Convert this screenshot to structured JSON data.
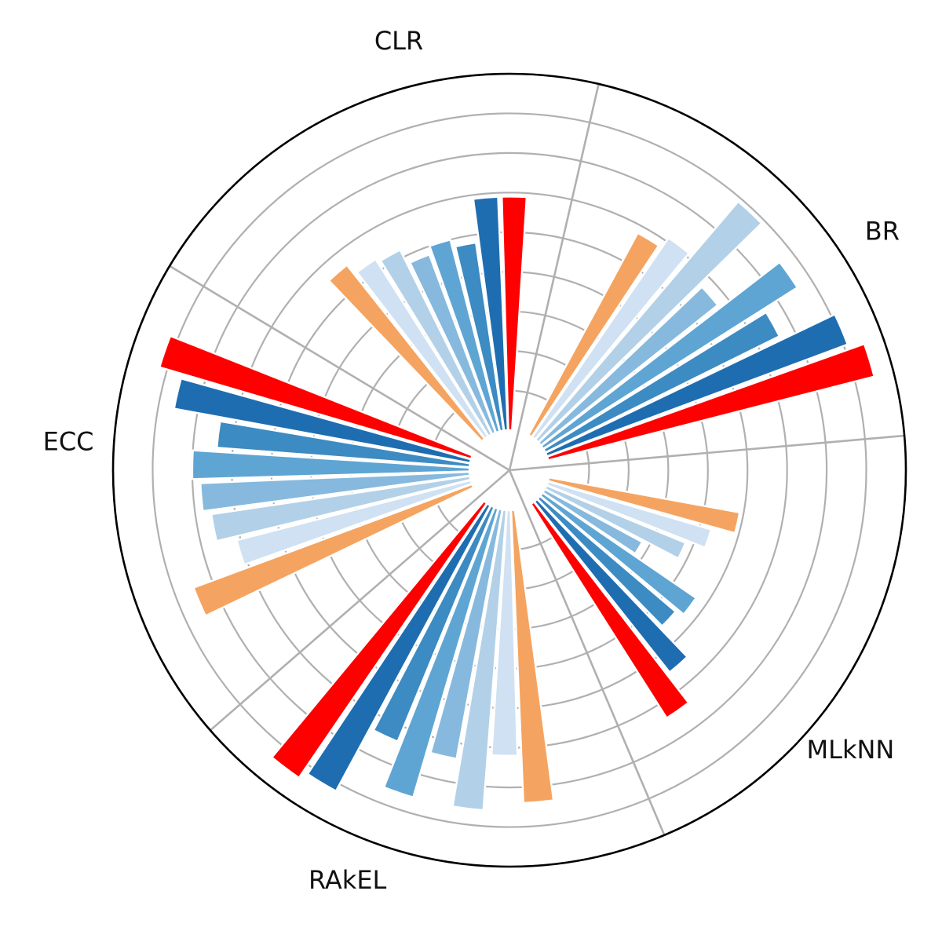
{
  "chart_data": {
    "type": "bar",
    "projection": "polar",
    "title": "",
    "grid": true,
    "r_range": [
      0,
      9
    ],
    "r_ticks": [
      1,
      2,
      3,
      4,
      5,
      6,
      7,
      8,
      9
    ],
    "bar_colors": [
      "#ff0000",
      "#1f6db1",
      "#3c8bc3",
      "#5fa5d3",
      "#86b9dd",
      "#b2d1e8",
      "#cfe1f2",
      "#f4a460"
    ],
    "groups": [
      {
        "label": "BR",
        "values": [
          8.5,
          8.1,
          6.6,
          7.6,
          5.7,
          7.9,
          6.1,
          5.8
        ]
      },
      {
        "label": "CLR",
        "values": [
          5.9,
          5.9,
          4.8,
          5.0,
          4.8,
          5.2,
          5.3,
          5.6
        ]
      },
      {
        "label": "ECC",
        "values": [
          8.2,
          7.6,
          6.4,
          7.0,
          6.8,
          6.6,
          6.1,
          7.5
        ]
      },
      {
        "label": "RAkEL",
        "values": [
          8.4,
          8.2,
          6.4,
          7.6,
          6.4,
          7.6,
          6.2,
          7.4
        ]
      },
      {
        "label": "MLkNN",
        "values": [
          6.4,
          5.5,
          4.5,
          4.7,
          2.8,
          3.8,
          4.3,
          4.9
        ]
      }
    ]
  }
}
